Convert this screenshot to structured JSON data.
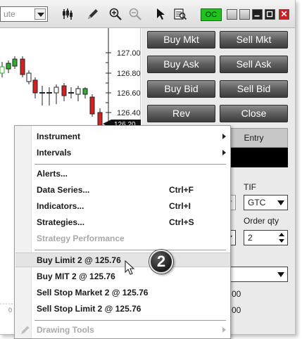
{
  "toolbar": {
    "interval_value": "ute",
    "icons": [
      "bar-type-icon",
      "pencil-icon",
      "zoom-in-icon",
      "zoom-out-icon",
      "pointer-icon",
      "data-box-icon"
    ],
    "oc_label": "OC"
  },
  "chart": {
    "price_labels": [
      "127.00",
      "126.80",
      "126.60",
      "126.40",
      "126.20"
    ],
    "axis_stub": "0",
    "accent_up": "#2fae2f",
    "accent_down": "#d32121"
  },
  "order_panel": {
    "buttons": [
      {
        "label": "Buy Mkt"
      },
      {
        "label": "Sell Mkt"
      },
      {
        "label": "Buy Ask"
      },
      {
        "label": "Sell Ask"
      },
      {
        "label": "Buy Bid"
      },
      {
        "label": "Sell Bid"
      },
      {
        "label": "Rev"
      },
      {
        "label": "Close"
      }
    ],
    "entry_header": "Entry",
    "tif_label": "TIF",
    "tif_value": "GTC",
    "order_qty_label": "Order qty",
    "order_qty_value": "2",
    "row_values": [
      "00",
      "00"
    ]
  },
  "menu": {
    "items": [
      {
        "label": "Instrument",
        "shortcut": "",
        "submenu": true,
        "disabled": false
      },
      {
        "label": "Intervals",
        "shortcut": "",
        "submenu": true,
        "disabled": false
      },
      {
        "label": "Alerts...",
        "shortcut": "",
        "submenu": false,
        "disabled": false
      },
      {
        "label": "Data Series...",
        "shortcut": "Ctrl+F",
        "submenu": false,
        "disabled": false
      },
      {
        "label": "Indicators...",
        "shortcut": "Ctrl+I",
        "submenu": false,
        "disabled": false
      },
      {
        "label": "Strategies...",
        "shortcut": "Ctrl+S",
        "submenu": false,
        "disabled": false
      },
      {
        "label": "Strategy Performance",
        "shortcut": "",
        "submenu": false,
        "disabled": true
      },
      {
        "label": "Buy Limit 2 @ 125.76",
        "shortcut": "",
        "submenu": false,
        "disabled": false
      },
      {
        "label": "Buy MIT 2 @ 125.76",
        "shortcut": "",
        "submenu": false,
        "disabled": false
      },
      {
        "label": "Sell Stop Market 2 @ 125.76",
        "shortcut": "",
        "submenu": false,
        "disabled": false
      },
      {
        "label": "Sell Stop Limit 2 @ 125.76",
        "shortcut": "",
        "submenu": false,
        "disabled": false
      },
      {
        "label": "Drawing Tools",
        "shortcut": "",
        "submenu": true,
        "disabled": true
      }
    ]
  },
  "badge": {
    "number": "2"
  }
}
